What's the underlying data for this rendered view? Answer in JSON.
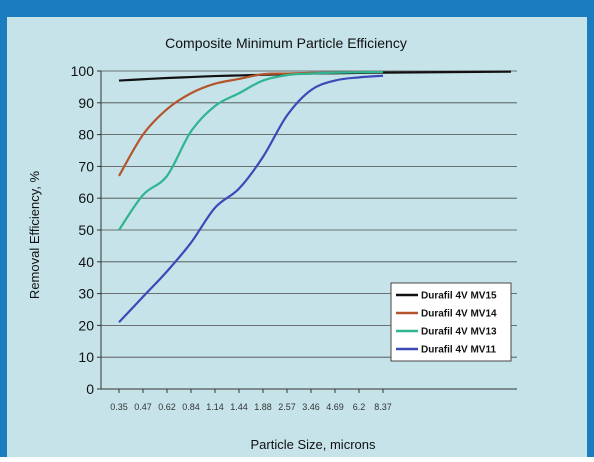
{
  "chart_data": {
    "type": "line",
    "title": "Composite Minimum Particle Efficiency",
    "xlabel": "Particle Size, microns",
    "ylabel": "Removal Efficiency, %",
    "ylim": [
      0,
      100
    ],
    "yticks": [
      0,
      10,
      20,
      30,
      40,
      50,
      60,
      70,
      80,
      90,
      100
    ],
    "x": [
      "0.35",
      "0.47",
      "0.62",
      "0.84",
      "1.14",
      "1.44",
      "1.88",
      "2.57",
      "3.46",
      "4.69",
      "6.2",
      "8.37"
    ],
    "grid": "horizontal",
    "legend": "bottom-right",
    "series": [
      {
        "name": "Durafil 4V MV15",
        "color": "#111111",
        "values": [
          97,
          97.4,
          97.8,
          98.1,
          98.4,
          98.6,
          98.8,
          99,
          99.2,
          99.3,
          99.4,
          99.5
        ]
      },
      {
        "name": "Durafil 4V MV14",
        "color": "#b5552b",
        "values": [
          67,
          80,
          88,
          93,
          96,
          97.5,
          99,
          99.2,
          99.4,
          99.5,
          99.6,
          99.7
        ]
      },
      {
        "name": "Durafil 4V MV13",
        "color": "#2fb58f",
        "values": [
          50,
          61,
          67,
          81,
          89,
          93,
          97,
          98.7,
          99.2,
          99.5,
          99.6,
          99.7
        ]
      },
      {
        "name": "Durafil 4V MV11",
        "color": "#3a4ab8",
        "values": [
          21,
          29,
          37,
          46,
          57,
          63,
          73,
          86,
          94,
          97,
          98,
          98.5
        ]
      }
    ]
  }
}
